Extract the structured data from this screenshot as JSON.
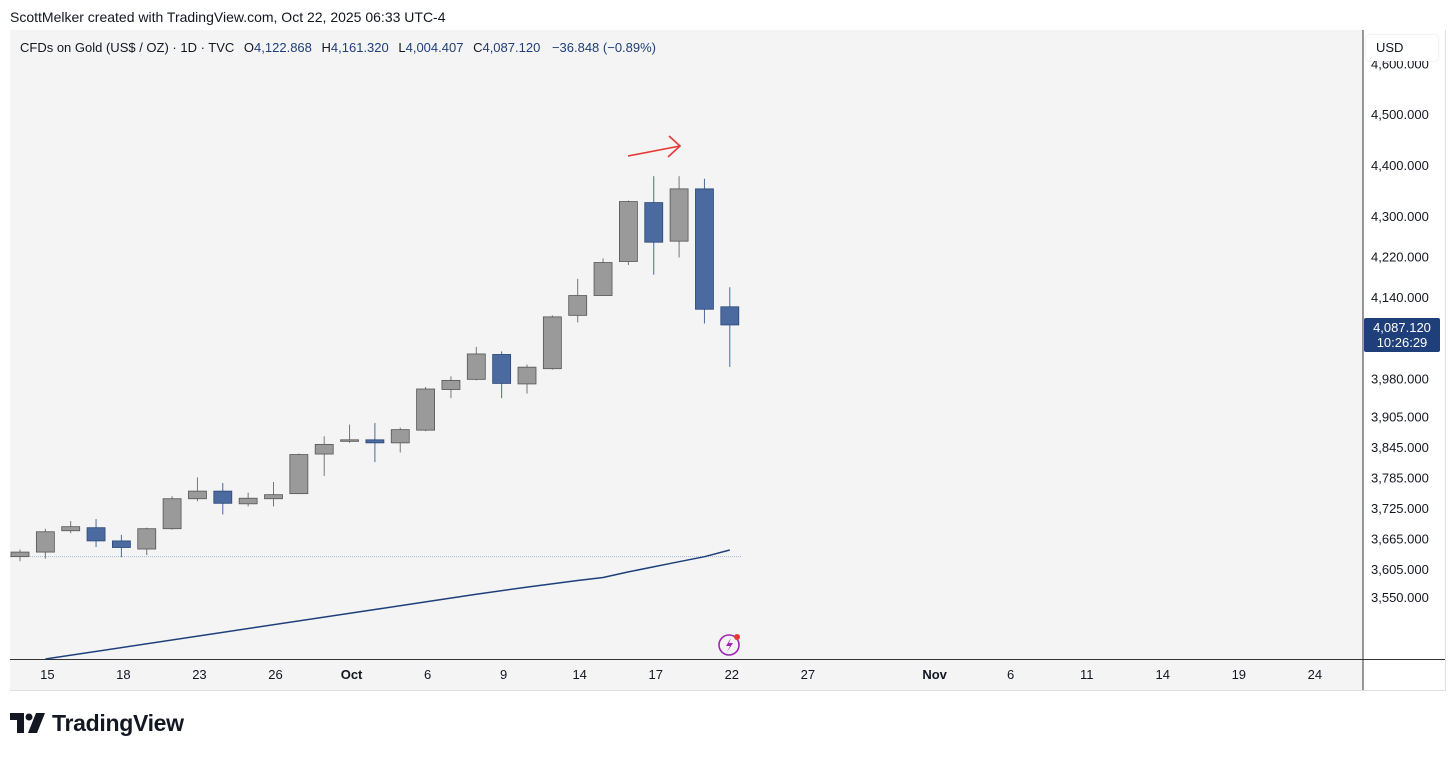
{
  "credit": "ScottMelker created with TradingView.com, Oct 22, 2025 06:33 UTC-4",
  "legend": {
    "symbol": "CFDs on Gold (US$ / OZ) · 1D · TVC",
    "o_label": "O",
    "o_value": "4,122.868",
    "h_label": "H",
    "h_value": "4,161.320",
    "l_label": "L",
    "l_value": "4,004.407",
    "c_label": "C",
    "c_value": "4,087.120",
    "change": "−36.848 (−0.89%)"
  },
  "currency": "USD",
  "last_price": {
    "value": "4,087.120",
    "countdown": "10:26:29"
  },
  "brand": "TradingView",
  "colors": {
    "up": "#9a9a9a",
    "down": "#4a6aa0",
    "ma": "#1e3f7a",
    "arrow": "#e53935",
    "label": "#1e3f7a",
    "bg": "#f4f4f4"
  },
  "chart_data": {
    "type": "candlestick",
    "title": "CFDs on Gold (US$ / OZ) · 1D · TVC",
    "y_axis_labels": [
      "4,600.000",
      "4,500.000",
      "4,400.000",
      "4,300.000",
      "4,220.000",
      "4,140.000",
      "3,980.000",
      "3,905.000",
      "3,845.000",
      "3,785.000",
      "3,725.000",
      "3,665.000",
      "3,605.000",
      "3,550.000"
    ],
    "y_axis_values": [
      4600,
      4500,
      4400,
      4300,
      4220,
      4140,
      3980,
      3905,
      3845,
      3785,
      3725,
      3665,
      3605,
      3550
    ],
    "x_axis_labels": [
      {
        "slot": 1,
        "label": "15"
      },
      {
        "slot": 4,
        "label": "18"
      },
      {
        "slot": 7,
        "label": "23"
      },
      {
        "slot": 10,
        "label": "26"
      },
      {
        "slot": 13,
        "label": "Oct"
      },
      {
        "slot": 16,
        "label": "6"
      },
      {
        "slot": 19,
        "label": "9"
      },
      {
        "slot": 22,
        "label": "14"
      },
      {
        "slot": 25,
        "label": "17"
      },
      {
        "slot": 28,
        "label": "22"
      },
      {
        "slot": 31,
        "label": "27"
      },
      {
        "slot": 36,
        "label": "Nov"
      },
      {
        "slot": 39,
        "label": "6"
      },
      {
        "slot": 42,
        "label": "11"
      },
      {
        "slot": 45,
        "label": "14"
      },
      {
        "slot": 48,
        "label": "19"
      },
      {
        "slot": 51,
        "label": "24"
      }
    ],
    "candles": [
      {
        "o": 3631,
        "h": 3645,
        "l": 3622,
        "c": 3640
      },
      {
        "o": 3640,
        "h": 3686,
        "l": 3627,
        "c": 3680
      },
      {
        "o": 3682,
        "h": 3701,
        "l": 3677,
        "c": 3690
      },
      {
        "o": 3688,
        "h": 3705,
        "l": 3650,
        "c": 3662
      },
      {
        "o": 3662,
        "h": 3674,
        "l": 3630,
        "c": 3649
      },
      {
        "o": 3646,
        "h": 3688,
        "l": 3634,
        "c": 3686
      },
      {
        "o": 3686,
        "h": 3750,
        "l": 3684,
        "c": 3745
      },
      {
        "o": 3745,
        "h": 3787,
        "l": 3740,
        "c": 3760
      },
      {
        "o": 3760,
        "h": 3776,
        "l": 3714,
        "c": 3736
      },
      {
        "o": 3735,
        "h": 3757,
        "l": 3730,
        "c": 3746
      },
      {
        "o": 3745,
        "h": 3778,
        "l": 3730,
        "c": 3753
      },
      {
        "o": 3755,
        "h": 3834,
        "l": 3754,
        "c": 3832
      },
      {
        "o": 3833,
        "h": 3868,
        "l": 3790,
        "c": 3852
      },
      {
        "o": 3858,
        "h": 3891,
        "l": 3855,
        "c": 3861
      },
      {
        "o": 3861,
        "h": 3894,
        "l": 3817,
        "c": 3855
      },
      {
        "o": 3855,
        "h": 3885,
        "l": 3836,
        "c": 3881
      },
      {
        "o": 3880,
        "h": 3965,
        "l": 3878,
        "c": 3961
      },
      {
        "o": 3960,
        "h": 3986,
        "l": 3943,
        "c": 3978
      },
      {
        "o": 3980,
        "h": 4044,
        "l": 3978,
        "c": 4030
      },
      {
        "o": 4029,
        "h": 4035,
        "l": 3943,
        "c": 3972
      },
      {
        "o": 3971,
        "h": 4009,
        "l": 3952,
        "c": 4004
      },
      {
        "o": 4001,
        "h": 4106,
        "l": 3999,
        "c": 4103
      },
      {
        "o": 4106,
        "h": 4178,
        "l": 4092,
        "c": 4145
      },
      {
        "o": 4145,
        "h": 4218,
        "l": 4145,
        "c": 4210
      },
      {
        "o": 4212,
        "h": 4332,
        "l": 4205,
        "c": 4330
      },
      {
        "o": 4328,
        "h": 4380,
        "l": 4186,
        "c": 4250
      },
      {
        "o": 4252,
        "h": 4380,
        "l": 4220,
        "c": 4355
      },
      {
        "o": 4355,
        "h": 4375,
        "l": 4090,
        "c": 4118
      },
      {
        "o": 4122.868,
        "h": 4161.32,
        "l": 4004.407,
        "c": 4087.12
      }
    ],
    "moving_average": [
      {
        "slot": 14,
        "value": 3527
      },
      {
        "slot": 16,
        "value": 3542
      },
      {
        "slot": 18,
        "value": 3557
      },
      {
        "slot": 20,
        "value": 3571
      },
      {
        "slot": 22,
        "value": 3584
      },
      {
        "slot": 23,
        "value": 3590
      },
      {
        "slot": 24,
        "value": 3601
      },
      {
        "slot": 26,
        "value": 3621
      },
      {
        "slot": 27,
        "value": 3631
      },
      {
        "slot": 28,
        "value": 3644
      }
    ],
    "horizontal_line": 3631
  }
}
